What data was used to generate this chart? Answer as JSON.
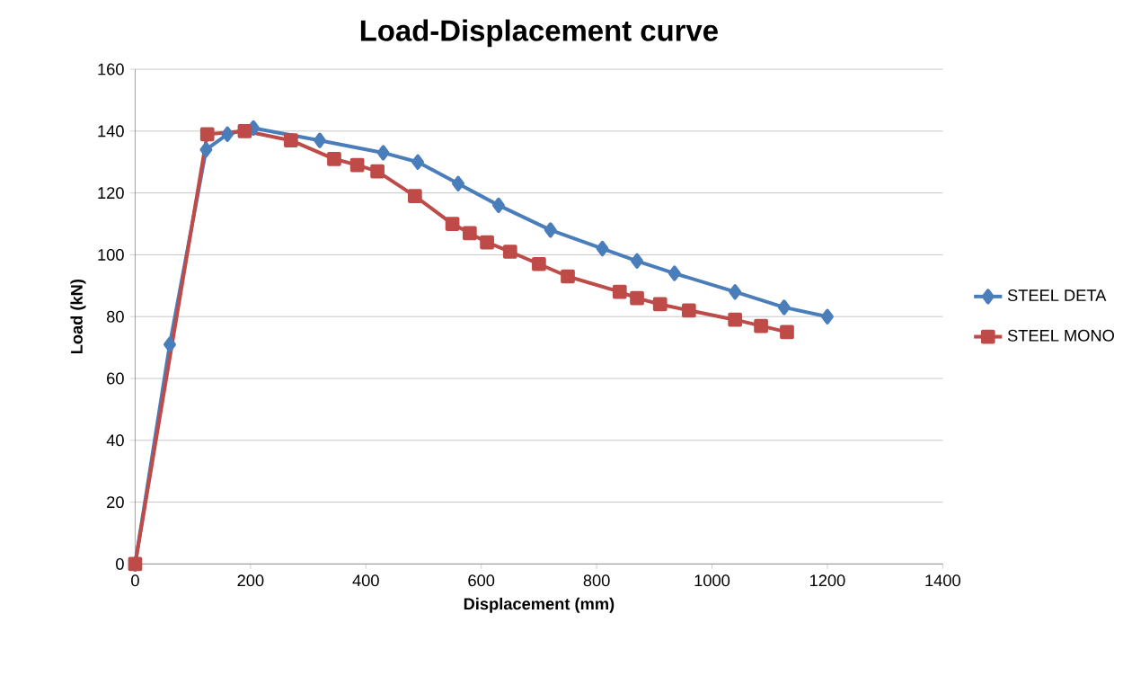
{
  "chart_data": {
    "type": "line",
    "title": "Load-Displacement curve",
    "xlabel": "Displacement (mm)",
    "ylabel": "Load (kN)",
    "xlim": [
      0,
      1400
    ],
    "xticks": [
      0,
      200,
      400,
      600,
      800,
      1000,
      1200,
      1400
    ],
    "ylim": [
      0,
      160
    ],
    "yticks": [
      0,
      20,
      40,
      60,
      80,
      100,
      120,
      140,
      160
    ],
    "grid": "y",
    "legend": "right",
    "series": [
      {
        "name": "STEEL DETA",
        "color": "#4a7ebb",
        "marker": "diamond",
        "x": [
          0,
          60,
          123,
          160,
          205,
          320,
          430,
          490,
          560,
          630,
          720,
          810,
          870,
          935,
          1040,
          1125,
          1200
        ],
        "values": [
          0,
          71,
          134,
          139,
          141,
          137,
          133,
          130,
          123,
          116,
          108,
          102,
          98,
          94,
          88,
          83,
          80
        ]
      },
      {
        "name": "STEEL MONO",
        "color": "#be4b48",
        "marker": "square",
        "x": [
          0,
          125,
          190,
          270,
          345,
          385,
          420,
          485,
          550,
          580,
          610,
          650,
          700,
          750,
          840,
          870,
          910,
          960,
          1040,
          1085,
          1130
        ],
        "values": [
          0,
          139,
          140,
          137,
          131,
          129,
          127,
          119,
          110,
          107,
          104,
          101,
          97,
          93,
          88,
          86,
          84,
          82,
          79,
          77,
          75
        ]
      }
    ]
  }
}
